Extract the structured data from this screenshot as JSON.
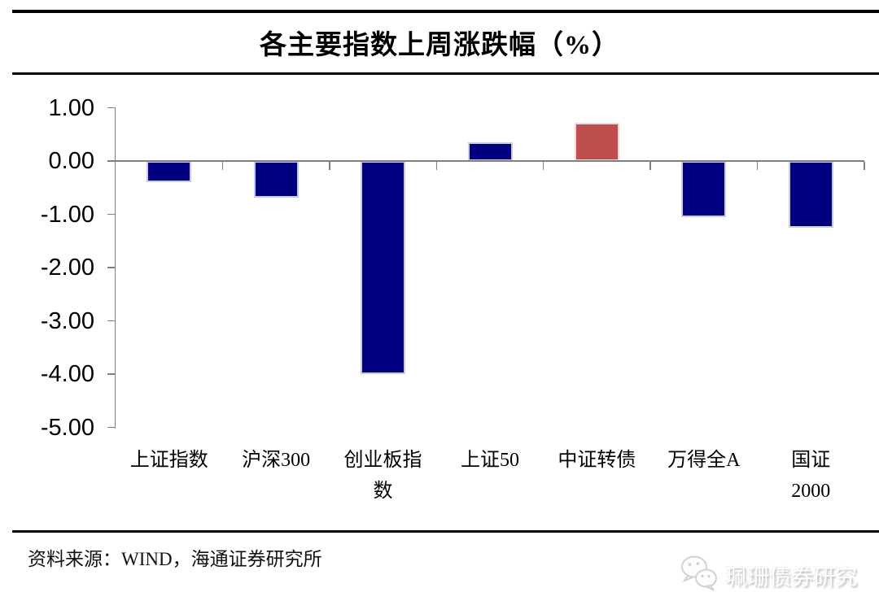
{
  "chart_data": {
    "type": "bar",
    "title": "各主要指数上周涨跌幅（%）",
    "categories": [
      "上证指数",
      "沪深300",
      "创业板指数",
      "上证50",
      "中证转债",
      "万得全A",
      "国证2000"
    ],
    "values": [
      -0.4,
      -0.68,
      -4.0,
      0.35,
      0.71,
      -1.05,
      -1.25
    ],
    "unit": "%",
    "ylim": [
      -5.0,
      1.0
    ],
    "yticks": [
      1,
      0,
      -1,
      -2,
      -3,
      -4,
      -5
    ],
    "ytick_labels": [
      "1.00",
      "0.00",
      "-1.00",
      "-2.00",
      "-3.00",
      "-4.00",
      "-5.00"
    ],
    "x_tick_lines": [
      [
        "上证指数"
      ],
      [
        "沪深300"
      ],
      [
        "创业板指",
        "数"
      ],
      [
        "上证50"
      ],
      [
        "中证转债"
      ],
      [
        "万得全A"
      ],
      [
        "国证",
        "2000"
      ]
    ],
    "grid": false,
    "legend": null,
    "colors": {
      "default": "#000080",
      "highlight": "#BF4F4D",
      "default_border": "#c9c9ea",
      "highlight_border": "#ecdada",
      "axis": "#808080"
    },
    "highlight_index": 4
  },
  "footer": {
    "source": "资料来源：WIND，海通证券研究所"
  },
  "watermark": {
    "label": "珮珊债券研究",
    "icon": "wechat-icon"
  }
}
